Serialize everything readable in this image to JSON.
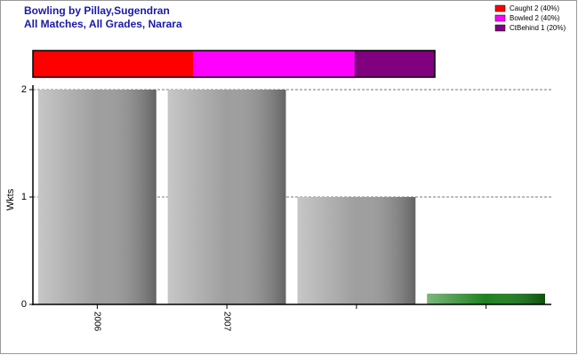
{
  "chart_data": {
    "type": "bar",
    "title": "Bowling by Pillay,Sugendran",
    "subtitle": "All Matches, All Grades, Narara",
    "y_label": "Wkts",
    "categories": [
      "2006",
      "2007",
      null,
      null
    ],
    "values": [
      2,
      2,
      1,
      0.1
    ],
    "colors": [
      "#999999",
      "#999999",
      "#999999",
      "#137a13"
    ],
    "ylim": [
      0,
      2
    ],
    "yticks": [
      0,
      1,
      2
    ],
    "grid": true,
    "legend_position": "top-right",
    "breakdown": [
      {
        "name": "Caught 2 (40%)",
        "color": "#ff0000",
        "value": 2
      },
      {
        "name": "Bowled 2 (40%)",
        "color": "#ff00ff",
        "value": 2
      },
      {
        "name": "CtBehind 1 (20%)",
        "color": "#800080",
        "value": 1
      }
    ]
  }
}
